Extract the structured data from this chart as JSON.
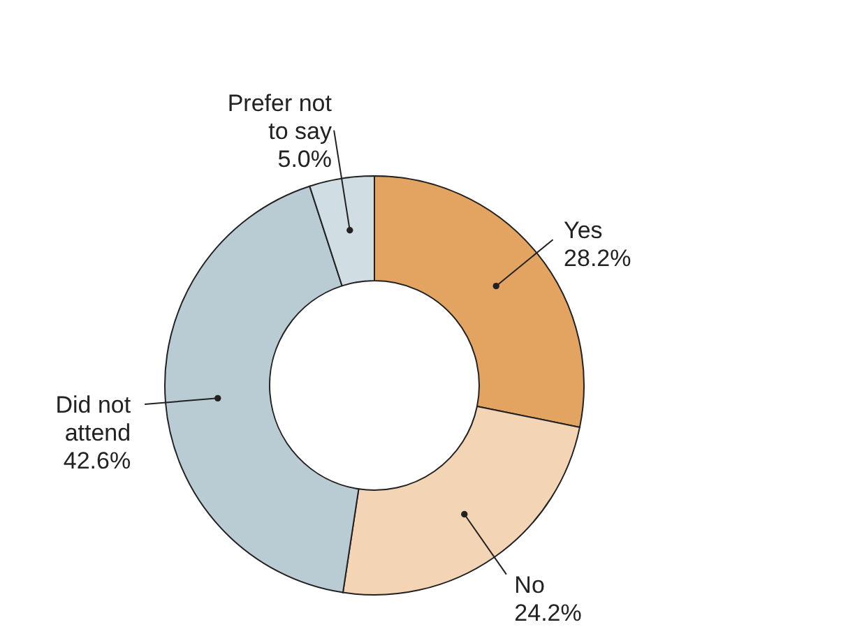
{
  "chart_data": {
    "type": "donut",
    "categories": [
      "Yes",
      "No",
      "Did not\nattend",
      "Prefer not\nto say"
    ],
    "values": [
      28.2,
      24.2,
      42.6,
      5.0
    ],
    "value_labels": [
      "28.2%",
      "24.2%",
      "42.6%",
      "5.0%"
    ],
    "colors": [
      "#e3a462",
      "#f3d5b5",
      "#b9cbd3",
      "#d0dde3"
    ]
  }
}
